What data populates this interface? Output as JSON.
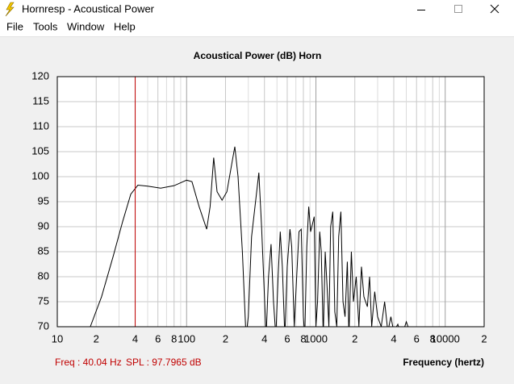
{
  "window": {
    "title": "Hornresp - Acoustical Power",
    "menu": [
      "File",
      "Tools",
      "Window",
      "Help"
    ]
  },
  "chart_data": {
    "type": "line",
    "title": "Acoustical Power (dB)    Horn",
    "x_label": "Frequency (hertz)",
    "x_scale": "log",
    "grid": true,
    "xlim": [
      10,
      20000
    ],
    "ylim": [
      70,
      120
    ],
    "xticks": [
      10,
      {
        "value": 20,
        "label": "2"
      },
      {
        "value": 40,
        "label": "4"
      },
      {
        "value": 60,
        "label": "6"
      },
      {
        "value": 80,
        "label": "8"
      },
      100,
      {
        "value": 200,
        "label": "2"
      },
      {
        "value": 400,
        "label": "4"
      },
      {
        "value": 600,
        "label": "6"
      },
      {
        "value": 800,
        "label": "8"
      },
      1000,
      {
        "value": 2000,
        "label": "2"
      },
      {
        "value": 4000,
        "label": "4"
      },
      {
        "value": 6000,
        "label": "6"
      },
      {
        "value": 8000,
        "label": "8"
      },
      10000,
      {
        "value": 20000,
        "label": "2"
      }
    ],
    "x_minor_grid": [
      30,
      50,
      70,
      90,
      300,
      500,
      700,
      900,
      3000,
      5000,
      7000,
      9000
    ],
    "yticks": [
      70,
      75,
      80,
      85,
      90,
      95,
      100,
      105,
      110,
      115,
      120
    ],
    "x": [
      18,
      22,
      27,
      32,
      37,
      42,
      50,
      63,
      80,
      100,
      110,
      125,
      143,
      152,
      162,
      172,
      188,
      205,
      225,
      236,
      250,
      270,
      288,
      300,
      318,
      362,
      380,
      412,
      430,
      450,
      470,
      490,
      510,
      530,
      550,
      575,
      600,
      630,
      650,
      680,
      710,
      740,
      770,
      800,
      820,
      850,
      880,
      910,
      940,
      970,
      1000,
      1030,
      1070,
      1100,
      1140,
      1180,
      1220,
      1260,
      1300,
      1350,
      1400,
      1450,
      1500,
      1560,
      1620,
      1680,
      1750,
      1800,
      1880,
      1950,
      2050,
      2150,
      2250,
      2350,
      2500,
      2600,
      2700,
      2850,
      3000,
      3200,
      3400,
      3600,
      3800,
      4000,
      4300,
      4600,
      5000,
      5500
    ],
    "series": [
      {
        "color": "#000000",
        "values": [
          70,
          76,
          84,
          91,
          96.5,
          98.3,
          98.1,
          97.7,
          98.2,
          99.3,
          99,
          94,
          89.5,
          94,
          103.8,
          97,
          95.3,
          97,
          103,
          106,
          100,
          85,
          68,
          72,
          88,
          100.8,
          90,
          68,
          80,
          86.5,
          75,
          68,
          80,
          89,
          82,
          68,
          82,
          89.5,
          86,
          70,
          80,
          89,
          89.5,
          72,
          68,
          86,
          94,
          89,
          90.5,
          92,
          70,
          75,
          89,
          85,
          68,
          85,
          78,
          70,
          90,
          93,
          73,
          70,
          88,
          93,
          75,
          72,
          83,
          68,
          85,
          75,
          80,
          70,
          82,
          76,
          74,
          80,
          70,
          77,
          72,
          70,
          75,
          69,
          72,
          69,
          70.5,
          68,
          71,
          68
        ]
      }
    ],
    "marker": {
      "x": 40.04,
      "color": "#c00000"
    }
  },
  "status": {
    "freq": "Freq : 40.04 Hz",
    "spl": "SPL : 97.7965 dB"
  }
}
